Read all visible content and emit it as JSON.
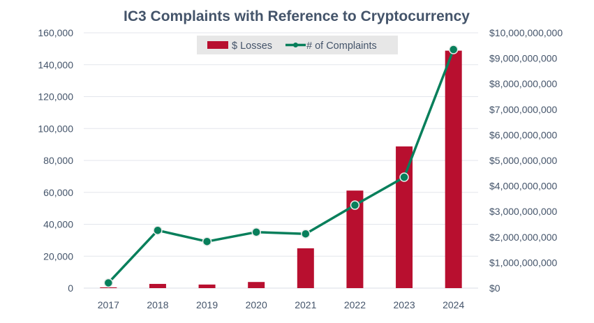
{
  "chart_data": {
    "type": "bar+line",
    "title": "IC3 Complaints with Reference to Cryptocurrency",
    "categories": [
      "2017",
      "2018",
      "2019",
      "2020",
      "2021",
      "2022",
      "2023",
      "2024"
    ],
    "series": [
      {
        "name": "$ Losses",
        "type": "bar",
        "axis": "right",
        "color": "#b80f2f",
        "values": [
          30000000,
          165000000,
          140000000,
          240000000,
          1560000000,
          3820000000,
          5550000000,
          9300000000
        ]
      },
      {
        "name": "# of Complaints",
        "type": "line",
        "axis": "left",
        "color": "#087f5b",
        "values": [
          3300,
          36200,
          29200,
          35100,
          34000,
          52000,
          69500,
          149500
        ]
      }
    ],
    "y_left": {
      "label": "",
      "range": [
        0,
        160000
      ],
      "ticks": [
        0,
        20000,
        40000,
        60000,
        80000,
        100000,
        120000,
        140000,
        160000
      ],
      "tick_labels": [
        "0",
        "20,000",
        "40,000",
        "60,000",
        "80,000",
        "100,000",
        "120,000",
        "140,000",
        "160,000"
      ]
    },
    "y_right": {
      "label": "",
      "range": [
        0,
        10000000000
      ],
      "ticks": [
        0,
        1000000000,
        2000000000,
        3000000000,
        4000000000,
        5000000000,
        6000000000,
        7000000000,
        8000000000,
        9000000000,
        10000000000
      ],
      "tick_labels": [
        "$0",
        "$1,000,000,000",
        "$2,000,000,000",
        "$3,000,000,000",
        "$4,000,000,000",
        "$5,000,000,000",
        "$6,000,000,000",
        "$7,000,000,000",
        "$8,000,000,000",
        "$9,000,000,000",
        "$10,000,000,000"
      ]
    },
    "xlabel": "",
    "grid": true,
    "legend_position": "top-center"
  }
}
